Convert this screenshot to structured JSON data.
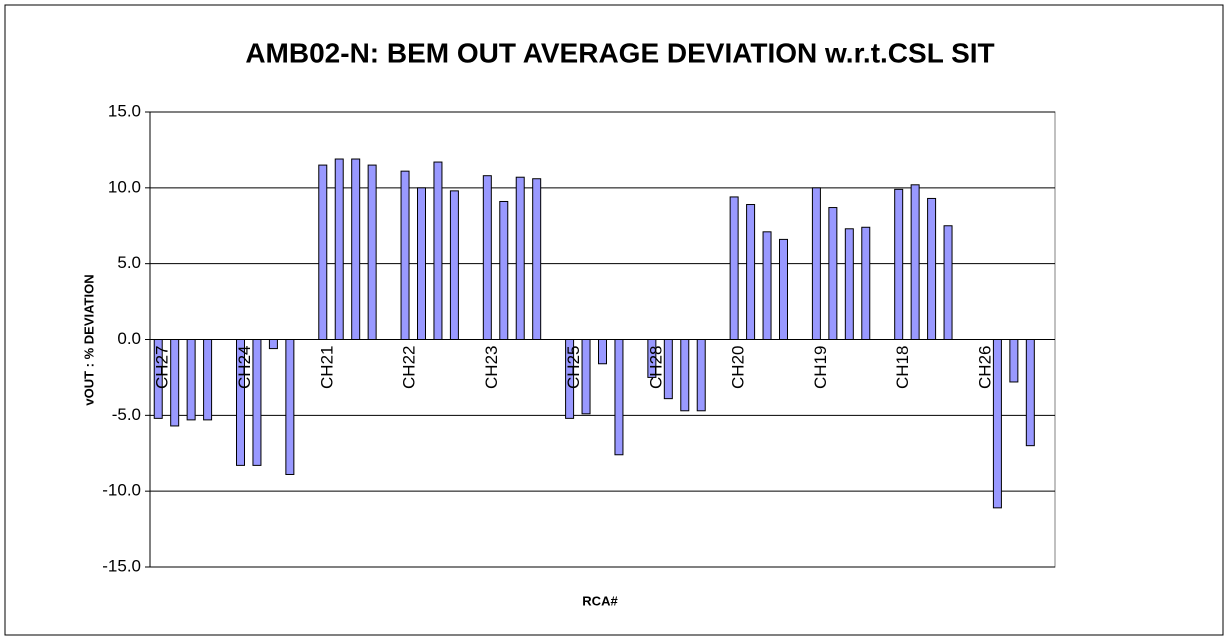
{
  "chart_data": {
    "type": "bar",
    "title": "AMB02-N: BEM OUT AVERAGE DEVIATION w.r.t.CSL SIT",
    "x_label": "RCA#",
    "y_label": "vOUT : % DEVIATION",
    "categories": [
      "CH27",
      null,
      null,
      null,
      null,
      "CH24",
      null,
      null,
      null,
      null,
      "CH21",
      null,
      null,
      null,
      null,
      "CH22",
      null,
      null,
      null,
      null,
      "CH23",
      null,
      null,
      null,
      null,
      "CH25",
      null,
      null,
      null,
      null,
      "CH28",
      null,
      null,
      null,
      null,
      "CH20",
      null,
      null,
      null,
      null,
      "CH19",
      null,
      null,
      null,
      null,
      "CH18",
      null,
      null,
      null,
      null,
      "CH26",
      null,
      null,
      null,
      null
    ],
    "values": [
      -5.2,
      -5.7,
      -5.3,
      -5.3,
      null,
      -8.3,
      -8.3,
      -0.6,
      -8.9,
      null,
      11.5,
      11.9,
      11.9,
      11.5,
      null,
      11.1,
      10.0,
      11.7,
      9.8,
      null,
      10.8,
      9.1,
      10.7,
      10.6,
      null,
      -5.2,
      -4.9,
      -1.6,
      -7.6,
      null,
      -2.5,
      -3.9,
      -4.7,
      -4.7,
      null,
      9.4,
      8.9,
      7.1,
      6.6,
      null,
      10.0,
      8.7,
      7.3,
      7.4,
      null,
      9.9,
      10.2,
      9.3,
      7.5,
      null,
      null,
      -11.1,
      -2.8,
      -7.0,
      null
    ],
    "color": "#9999ff",
    "ylim": [
      -15,
      15
    ],
    "yticks": [
      {
        "value": -15,
        "label": "-15.0"
      },
      {
        "value": -10,
        "label": "-10.0"
      },
      {
        "value": -5,
        "label": "-5.0"
      },
      {
        "value": 0,
        "label": "0.0"
      },
      {
        "value": 5,
        "label": "5.0"
      },
      {
        "value": 10,
        "label": "10.0"
      },
      {
        "value": 15,
        "label": "15.0"
      }
    ],
    "grid": true
  }
}
